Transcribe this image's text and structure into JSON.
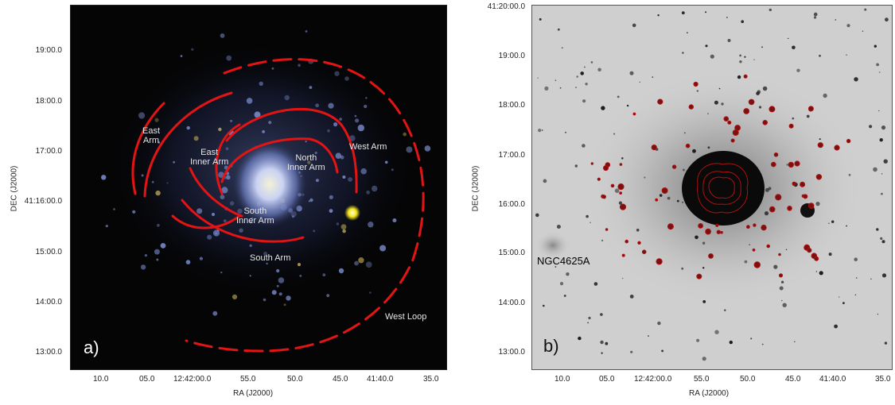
{
  "panel_a": {
    "letter": "a)",
    "arm_labels": {
      "east_arm": [
        "East",
        "Arm"
      ],
      "east_inner_arm": [
        "East",
        "Inner",
        "Arm"
      ],
      "north_inner_arm": [
        "North",
        "Inner Arm"
      ],
      "west_arm": "West Arm",
      "south_inner_arm": [
        "South",
        "Inner Arm"
      ],
      "south_arm": "South Arm",
      "west_loop": "West Loop"
    },
    "ra_ticks": [
      "10.0",
      "05.0",
      "12:42:00.0",
      "55.0",
      "50.0",
      "45.0",
      "41:40.0",
      "35.0"
    ],
    "dec_ticks": [
      "19:00.0",
      "18:00.0",
      "17:00.0",
      "41:16:00.0",
      "15:00.0",
      "14:00.0",
      "13:00.0"
    ],
    "xlabel": "RA (J2000)",
    "ylabel": "DEC (J2000)"
  },
  "panel_b": {
    "letter": "b)",
    "companion_label": "NGC4625A",
    "ra_ticks": [
      "10.0",
      "05.0",
      "12:42:00.0",
      "55.0",
      "50.0",
      "45.0",
      "41:40.0",
      "35.0"
    ],
    "dec_ticks": [
      "41:20:00.0",
      "19:00.0",
      "18:00.0",
      "17:00.0",
      "16:00.0",
      "15:00.0",
      "14:00.0",
      "13:00.0"
    ],
    "xlabel": "RA (J2000)",
    "ylabel": "DEC (J2000)"
  },
  "colors": {
    "arm_line": "#e41414",
    "galaxy_glow": "#9fb2e8",
    "star_yellow": "#f5e51a",
    "contour": "#b01010"
  }
}
